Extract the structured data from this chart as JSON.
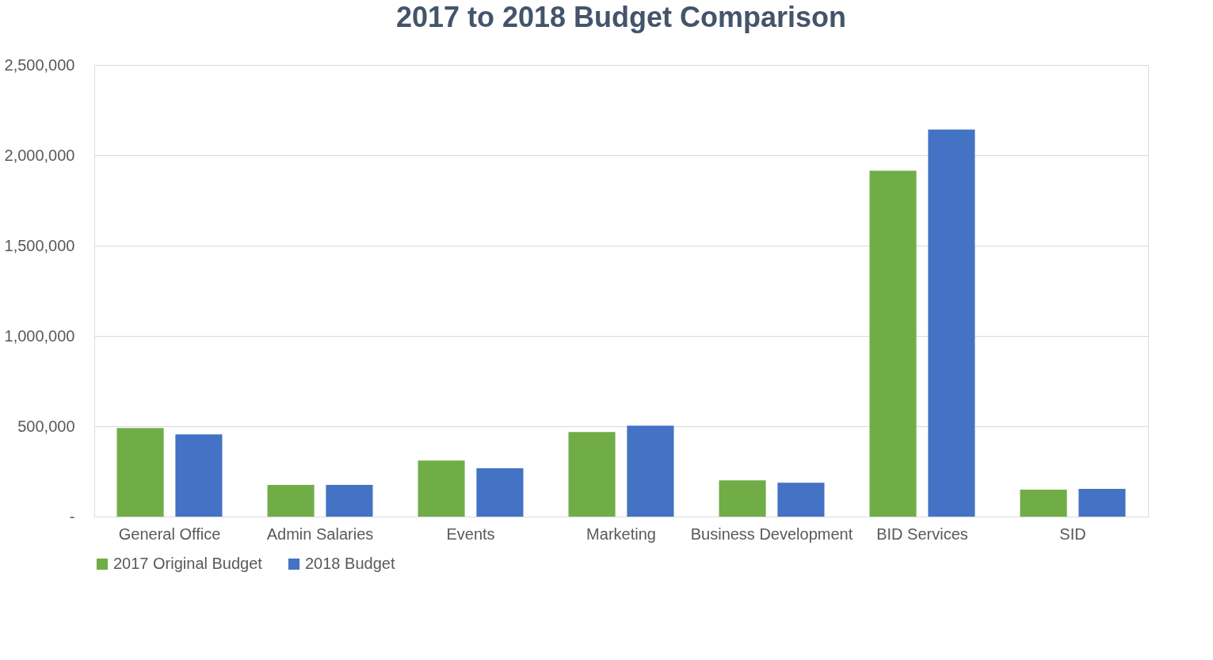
{
  "chart_data": {
    "type": "bar",
    "title": "2017 to 2018 Budget Comparison",
    "categories": [
      "General Office",
      "Admin Salaries",
      "Events",
      "Marketing",
      "Business Development",
      "BID Services",
      "SID"
    ],
    "series": [
      {
        "name": "2017 Original Budget",
        "color": "#70ad47",
        "values": [
          490000,
          175000,
          310000,
          468000,
          201000,
          1914000,
          149000
        ]
      },
      {
        "name": "2018 Budget",
        "color": "#4472c4",
        "values": [
          455000,
          175000,
          267000,
          503000,
          188000,
          2142000,
          153000
        ]
      }
    ],
    "ylim": [
      0,
      2500000
    ],
    "yticks": [
      {
        "value": 0,
        "label": "-"
      },
      {
        "value": 500000,
        "label": "500,000"
      },
      {
        "value": 1000000,
        "label": "1,000,000"
      },
      {
        "value": 1500000,
        "label": "1,500,000"
      },
      {
        "value": 2000000,
        "label": "2,000,000"
      },
      {
        "value": 2500000,
        "label": "2,500,000"
      }
    ],
    "grid": "y",
    "legend": "bottom"
  }
}
